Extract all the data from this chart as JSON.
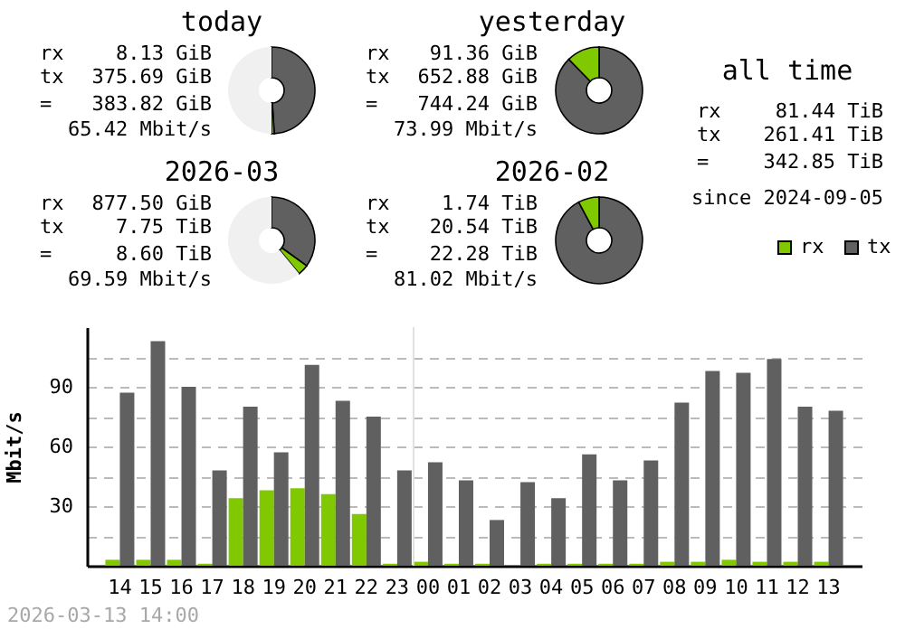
{
  "chart_data": [
    {
      "type": "donut",
      "title": "today",
      "categories": [
        null,
        null,
        null
      ],
      "values": [
        49,
        1,
        50
      ],
      "colors": [
        "#606060",
        "#80c800",
        "#f0f0f0"
      ],
      "annotations": [
        "rx",
        "8.13 GiB",
        "tx",
        "375.69 GiB",
        "=",
        "383.82 GiB",
        "65.42 Mbit/s"
      ]
    },
    {
      "type": "donut",
      "title": "yesterday",
      "categories": [
        null,
        null
      ],
      "values": [
        87.7,
        12.3
      ],
      "colors": [
        "#606060",
        "#80c800"
      ],
      "annotations": [
        "rx",
        "91.36 GiB",
        "tx",
        "652.88 GiB",
        "=",
        "744.24 GiB",
        "73.99 Mbit/s"
      ]
    },
    {
      "type": "other",
      "title": "all time",
      "annotations": [
        "rx",
        "81.44 TiB",
        "tx",
        "261.41 TiB",
        "=",
        "342.85 TiB",
        "since 2024-09-05"
      ]
    },
    {
      "type": "donut",
      "title": "2026-03",
      "categories": [
        null,
        null,
        null
      ],
      "values": [
        35,
        4,
        61
      ],
      "colors": [
        "#606060",
        "#80c800",
        "#f0f0f0"
      ],
      "annotations": [
        "rx",
        "877.50 GiB",
        "tx",
        "7.75 TiB",
        "=",
        "8.60 TiB",
        "69.59 Mbit/s"
      ]
    },
    {
      "type": "donut",
      "title": "2026-02",
      "categories": [
        null,
        null
      ],
      "values": [
        92.2,
        7.8
      ],
      "colors": [
        "#606060",
        "#80c800"
      ],
      "annotations": [
        "rx",
        "1.74 TiB",
        "tx",
        "20.54 TiB",
        "=",
        "22.28 TiB",
        "81.02 Mbit/s"
      ]
    },
    {
      "type": "bar",
      "ylabel": "Mbit/s",
      "categories": [
        "14",
        "15",
        "16",
        "17",
        "18",
        "19",
        "20",
        "21",
        "22",
        "23",
        "00",
        "01",
        "02",
        "03",
        "04",
        "05",
        "06",
        "07",
        "08",
        "09",
        "10",
        "11",
        "12",
        "13"
      ],
      "series": [
        {
          "name": "rx",
          "color": "#80c800",
          "values": [
            3,
            3,
            3,
            1,
            34,
            38,
            39,
            36,
            26,
            1,
            2,
            1,
            1,
            0,
            1,
            1,
            1,
            1,
            2,
            2,
            3,
            2,
            2,
            2
          ]
        },
        {
          "name": "tx",
          "color": "#606060",
          "values": [
            87,
            113,
            90,
            48,
            80,
            57,
            101,
            83,
            75,
            48,
            52,
            43,
            23,
            42,
            34,
            56,
            43,
            53,
            82,
            98,
            97,
            104,
            80,
            78
          ]
        }
      ],
      "ylim": [
        0,
        120
      ],
      "yticks": [
        {
          "value": 15,
          "label": null
        },
        30,
        {
          "value": 45,
          "label": null
        },
        60,
        {
          "value": 75,
          "label": null
        },
        90,
        {
          "value": 105,
          "label": null
        }
      ],
      "grid": true,
      "legend": "top right",
      "ref_lines": [
        {
          "axis": "x",
          "value": "00",
          "color": "#e0e0e0"
        }
      ],
      "annotations": [
        "2026-03-13 14:00"
      ]
    }
  ]
}
